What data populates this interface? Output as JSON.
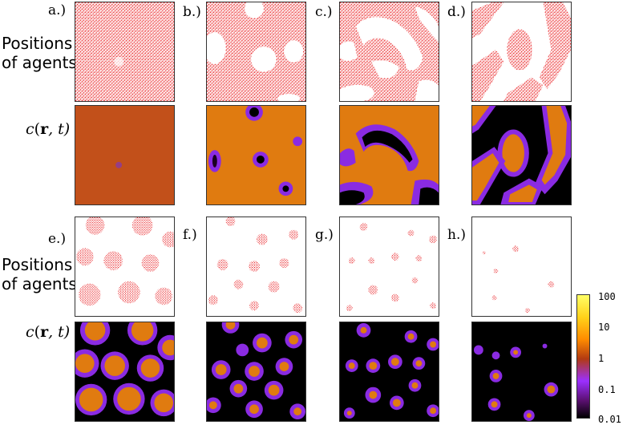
{
  "panel_labels": [
    "a.)",
    "b.)",
    "c.)",
    "d.)",
    "e.)",
    "f.)",
    "g.)",
    "h.)"
  ],
  "row_label_positions": {
    "line1": "Positions",
    "line2": "of agents"
  },
  "row_label_conc": {
    "c": "c",
    "r": "r",
    "rest": ", t)",
    "open": "("
  },
  "colorbar": {
    "ticks": [
      "100",
      "10",
      "1",
      "0.1",
      "0.01"
    ],
    "colors": [
      "#ffff66",
      "#ffd21a",
      "#ff8c00",
      "#b23a12",
      "#7a1f90",
      "#9b30ff",
      "#000000"
    ]
  },
  "colors": {
    "agents": "#e8161a",
    "bulk": "#e07b10",
    "ring": "#8a2be2",
    "background": "#000000"
  }
}
